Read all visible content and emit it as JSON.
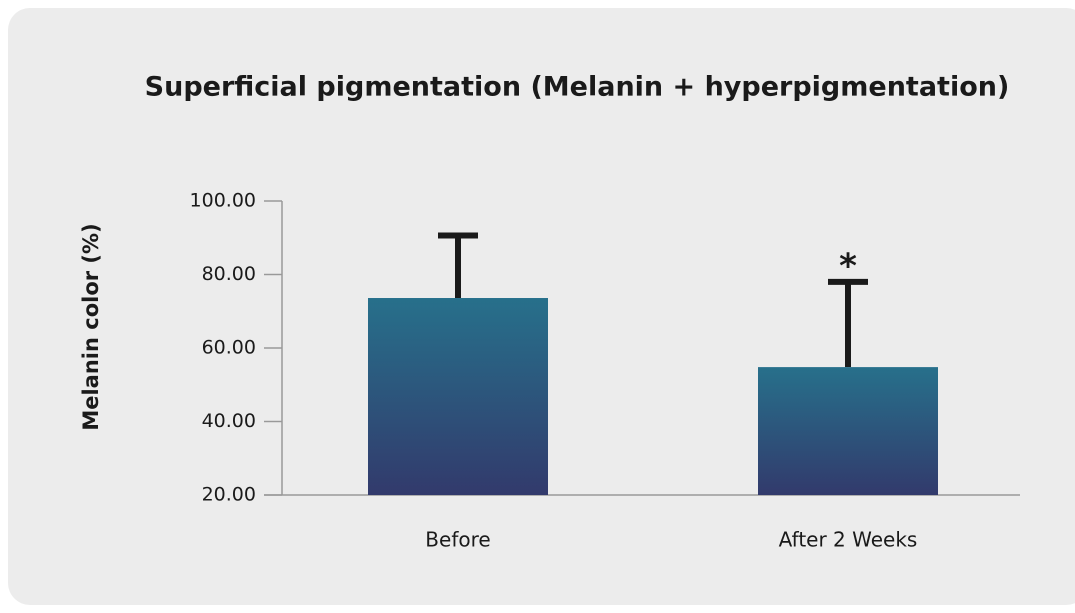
{
  "chart_data": {
    "type": "bar",
    "title": "Superficial pigmentation (Melanin + hyperpigmentation)",
    "y_label": "Melanin color (%)",
    "categories": [
      "Before",
      "After 2 Weeks"
    ],
    "values": [
      73.6,
      54.8
    ],
    "errors": [
      17,
      23.2
    ],
    "gradient": [
      "#27708b",
      "#323a6c"
    ],
    "error_color": "#1a1a1a",
    "annotations": [
      {
        "text": "*",
        "category": "After 2 Weeks"
      }
    ],
    "ylim": [
      20,
      100
    ],
    "yticks": [
      {
        "value": 20,
        "label": "20.00"
      },
      {
        "value": 40,
        "label": "40.00"
      },
      {
        "value": 60,
        "label": "60.00"
      },
      {
        "value": 80,
        "label": "80.00"
      },
      {
        "value": 100,
        "label": "100.00"
      }
    ]
  }
}
